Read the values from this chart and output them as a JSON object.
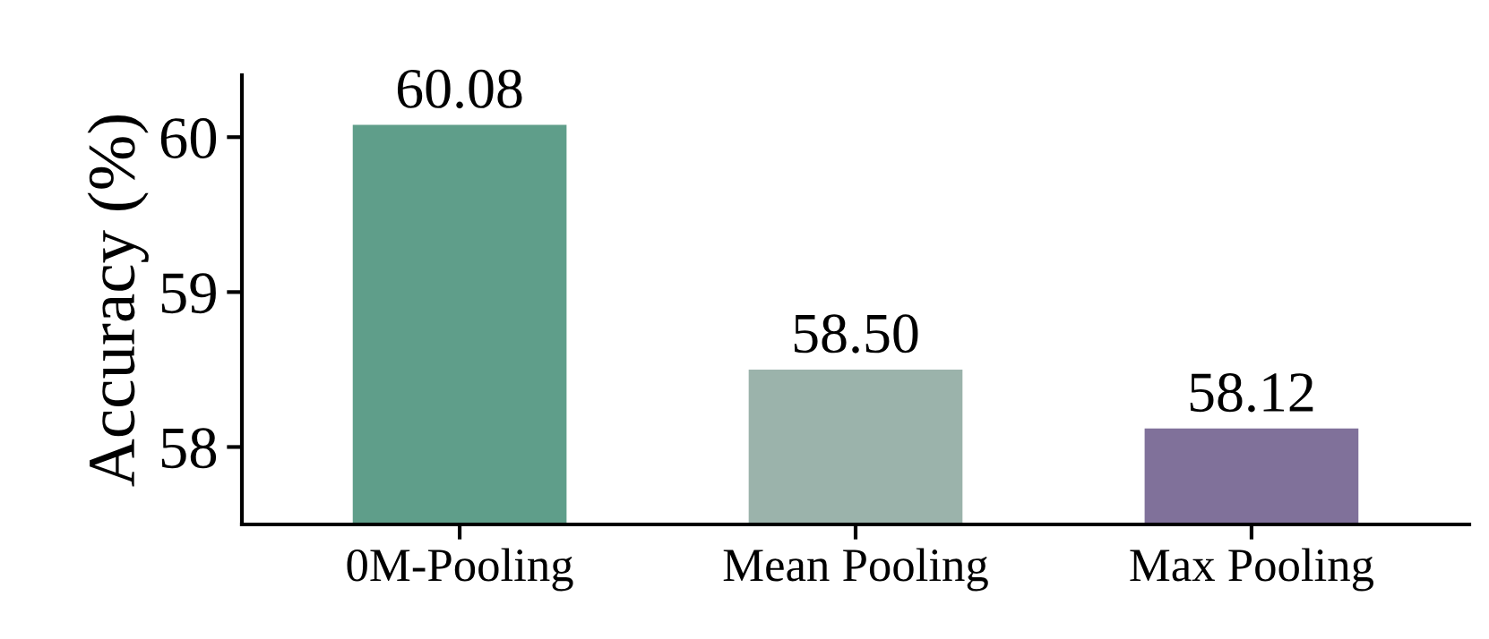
{
  "chart_data": {
    "type": "bar",
    "ylabel": "Accuracy (%)",
    "categories": [
      "0M-Pooling",
      "Mean Pooling",
      "Max Pooling"
    ],
    "values": [
      60.08,
      58.5,
      58.12
    ],
    "value_labels": [
      "60.08",
      "58.50",
      "58.12"
    ],
    "colors": [
      "#5f9e8a",
      "#9bb3ab",
      "#80719a"
    ],
    "ylim": [
      57.5,
      60.4
    ],
    "yticks": [
      58,
      59,
      60
    ],
    "grid": false,
    "legend": false
  }
}
